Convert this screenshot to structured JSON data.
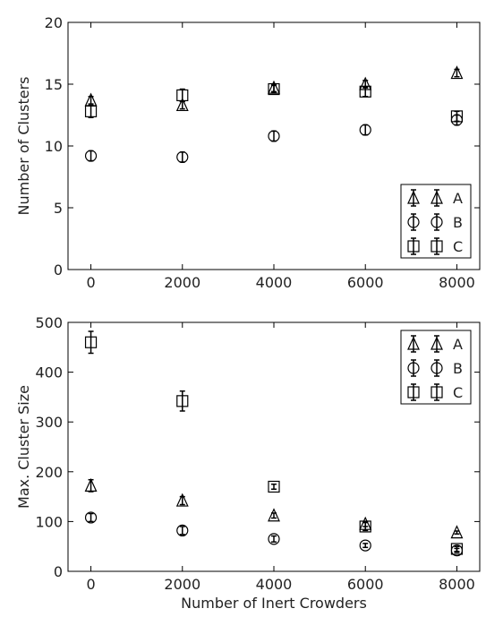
{
  "chart_data": [
    {
      "type": "scatter",
      "xlabel": "",
      "ylabel": "Number of Clusters",
      "xlim": [
        -500,
        8500
      ],
      "ylim": [
        0,
        20
      ],
      "xticks": [
        0,
        2000,
        4000,
        6000,
        8000
      ],
      "yticks": [
        0,
        5,
        10,
        15,
        20
      ],
      "grid": false,
      "legend_position": "lower-right",
      "series": [
        {
          "name": "A",
          "marker": "triangle",
          "x": [
            0,
            2000,
            4000,
            6000,
            8000
          ],
          "y": [
            13.7,
            13.3,
            14.7,
            15.0,
            15.9
          ],
          "err": [
            0.3,
            0.3,
            0.3,
            0.3,
            0.3
          ]
        },
        {
          "name": "B",
          "marker": "circle",
          "x": [
            0,
            2000,
            4000,
            6000,
            8000
          ],
          "y": [
            9.2,
            9.1,
            10.8,
            11.3,
            12.1
          ],
          "err": [
            0.4,
            0.4,
            0.4,
            0.4,
            0.4
          ]
        },
        {
          "name": "C",
          "marker": "square",
          "x": [
            0,
            2000,
            4000,
            6000,
            8000
          ],
          "y": [
            12.8,
            14.1,
            14.6,
            14.4,
            12.4
          ],
          "err": [
            0.5,
            0.5,
            0.3,
            0.4,
            0.4
          ]
        }
      ]
    },
    {
      "type": "scatter",
      "xlabel": "Number of Inert Crowders",
      "ylabel": "Max. Cluster Size",
      "xlim": [
        -500,
        8500
      ],
      "ylim": [
        0,
        500
      ],
      "xticks": [
        0,
        2000,
        4000,
        6000,
        8000
      ],
      "yticks": [
        0,
        100,
        200,
        300,
        400,
        500
      ],
      "grid": false,
      "legend_position": "top-right",
      "series": [
        {
          "name": "A",
          "marker": "triangle",
          "x": [
            0,
            2000,
            4000,
            6000,
            8000
          ],
          "y": [
            172,
            142,
            112,
            95,
            78
          ],
          "err": [
            12,
            8,
            5,
            5,
            3
          ]
        },
        {
          "name": "B",
          "marker": "circle",
          "x": [
            0,
            2000,
            4000,
            6000,
            8000
          ],
          "y": [
            108,
            82,
            65,
            52,
            42
          ],
          "err": [
            8,
            8,
            6,
            4,
            4
          ]
        },
        {
          "name": "C",
          "marker": "square",
          "x": [
            0,
            2000,
            4000,
            6000,
            8000
          ],
          "y": [
            460,
            342,
            170,
            90,
            45
          ],
          "err": [
            22,
            20,
            5,
            8,
            5
          ]
        }
      ]
    }
  ]
}
